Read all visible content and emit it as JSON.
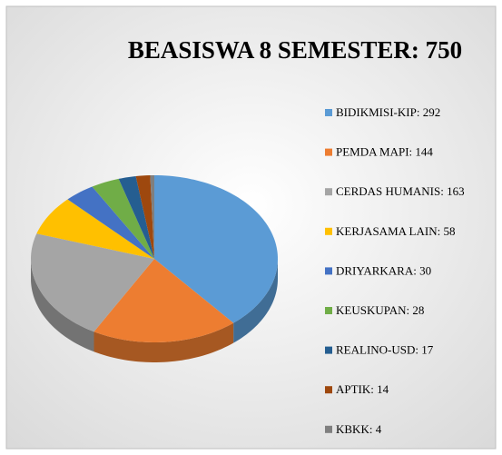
{
  "chart_data": {
    "type": "pie",
    "title": "BEASISWA 8 SEMESTER: 750",
    "categories": [
      "BIDIKMISI-KIP: 292",
      "PEMDA MAPI: 144",
      "CERDAS HUMANIS: 163",
      "KERJASAMA LAIN: 58",
      "DRIYARKARA: 30",
      "KEUSKUPAN: 28",
      "REALINO-USD: 17",
      "APTIK: 14",
      "KBKK: 4"
    ],
    "values": [
      292,
      144,
      163,
      58,
      30,
      28,
      17,
      14,
      4
    ],
    "colors": [
      "#5b9bd5",
      "#ed7d31",
      "#a5a5a5",
      "#ffc000",
      "#4472c4",
      "#70ad47",
      "#255e91",
      "#9e480e",
      "#7f7f7f"
    ],
    "legend": "right"
  }
}
